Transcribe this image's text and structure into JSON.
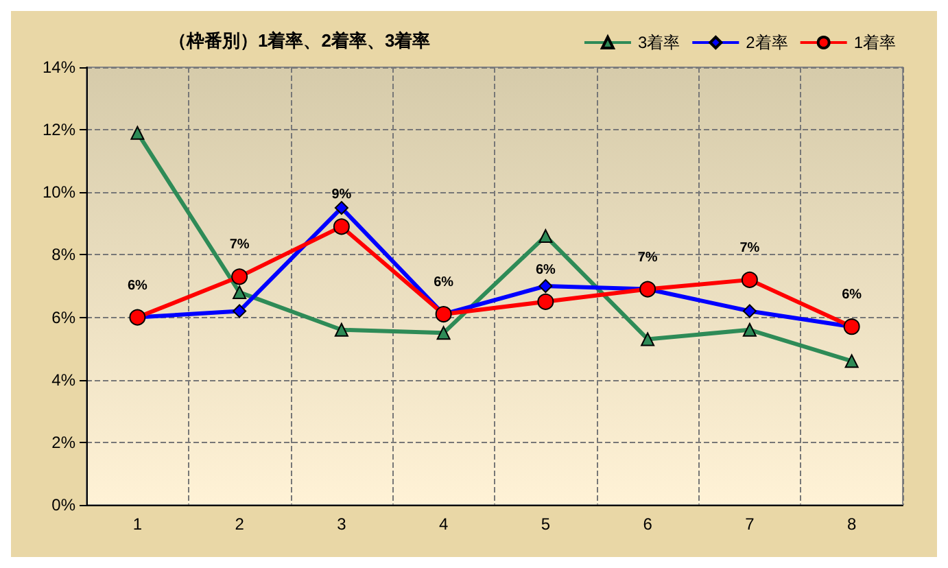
{
  "chart_data": {
    "type": "line",
    "title": "（枠番別）1着率、2着率、3着率",
    "categories": [
      "1",
      "2",
      "3",
      "4",
      "5",
      "6",
      "7",
      "8"
    ],
    "series": [
      {
        "name": "3着率",
        "color": "#2e8b57",
        "marker": "triangle",
        "values": [
          11.9,
          6.8,
          5.6,
          5.5,
          8.6,
          5.3,
          5.6,
          4.6
        ]
      },
      {
        "name": "2着率",
        "color": "#0000ff",
        "marker": "diamond",
        "values": [
          6.0,
          6.2,
          9.5,
          6.1,
          7.0,
          6.9,
          6.2,
          5.7
        ]
      },
      {
        "name": "1着率",
        "color": "#ff0000",
        "marker": "circle",
        "values": [
          6.0,
          7.3,
          8.9,
          6.1,
          6.5,
          6.9,
          7.2,
          5.7
        ],
        "value_labels": [
          "6%",
          "7%",
          "9%",
          "6%",
          "6%",
          "7%",
          "7%",
          "6%"
        ]
      }
    ],
    "ylim": [
      0,
      14
    ],
    "yticks": [
      {
        "value": 0,
        "label": "0%"
      },
      {
        "value": 2,
        "label": "2%"
      },
      {
        "value": 4,
        "label": "4%"
      },
      {
        "value": 6,
        "label": "6%"
      },
      {
        "value": 8,
        "label": "8%"
      },
      {
        "value": 10,
        "label": "10%"
      },
      {
        "value": 12,
        "label": "12%"
      },
      {
        "value": 14,
        "label": "14%"
      }
    ],
    "grid": true,
    "legend": "top right"
  }
}
